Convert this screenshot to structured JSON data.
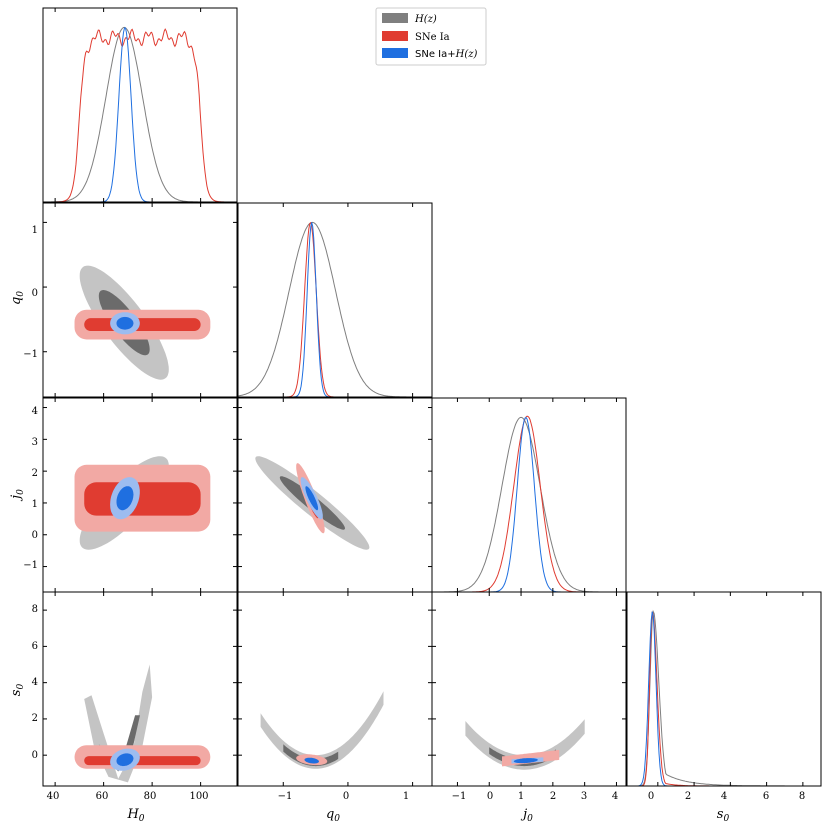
{
  "colors": {
    "hz": "#7f7f7f",
    "hz_inner": "#6b6b6b",
    "hz_outer": "#c4c4c4",
    "sne": "#e03c31",
    "sne_outer": "#f2a9a4",
    "comb": "#1f6fe0",
    "comb_outer": "#9cbcf0"
  },
  "legend": {
    "hz": "H(z)",
    "sne": "SNe Ia",
    "comb_prefix": "SNe Ia+",
    "comb_suffix": "H(z)"
  },
  "axes": {
    "H0": {
      "name": "H",
      "sub": "0",
      "ticks": [
        "40",
        "60",
        "80",
        "100"
      ]
    },
    "q0": {
      "name": "q",
      "sub": "0",
      "ticks": [
        "−1",
        "0",
        "1"
      ]
    },
    "j0": {
      "name": "j",
      "sub": "0",
      "ticks": [
        "−1",
        "0",
        "1",
        "2",
        "3",
        "4"
      ]
    },
    "s0": {
      "name": "s",
      "sub": "0",
      "ticks": [
        "0",
        "2",
        "4",
        "6",
        "8"
      ]
    },
    "q0_y": {
      "ticks": [
        "1",
        "0",
        "−1"
      ]
    },
    "j0_y": {
      "ticks": [
        "4",
        "3",
        "2",
        "1",
        "0",
        "−1"
      ]
    },
    "s0_y": {
      "ticks": [
        "8",
        "6",
        "4",
        "2",
        "0"
      ]
    }
  },
  "chart_data": {
    "type": "corner",
    "parameters": [
      "H0",
      "q0",
      "j0",
      "s0"
    ],
    "ranges": {
      "H0": [
        35,
        115
      ],
      "q0": [
        -1.7,
        1.3
      ],
      "j0": [
        -1.8,
        4.3
      ],
      "s0": [
        -1.7,
        9.0
      ]
    },
    "series": [
      {
        "name": "H(z)",
        "marginals": {
          "H0": {
            "mean": 68.5,
            "sd": 7.5
          },
          "q0": {
            "mean": -0.55,
            "sd": 0.36
          },
          "j0": {
            "mean": 1.0,
            "sd": 0.6
          },
          "s0": {
            "mode": -0.2,
            "tail_to": 8.0
          }
        }
      },
      {
        "name": "SNe Ia",
        "marginals": {
          "H0": {
            "shape": "flat",
            "lo": 50,
            "hi": 100
          },
          "q0": {
            "mean": -0.58,
            "sd": 0.09
          },
          "j0": {
            "mean": 1.15,
            "sd": 0.45
          },
          "s0": {
            "mode": -0.3,
            "tail_to": 2.0
          }
        }
      },
      {
        "name": "SNe Ia+H(z)",
        "marginals": {
          "H0": {
            "mean": 68.8,
            "sd": 2.5
          },
          "q0": {
            "mean": -0.56,
            "sd": 0.07
          },
          "j0": {
            "mean": 1.15,
            "sd": 0.27
          },
          "s0": {
            "mode": -0.3,
            "sd": 0.25
          }
        }
      }
    ]
  }
}
